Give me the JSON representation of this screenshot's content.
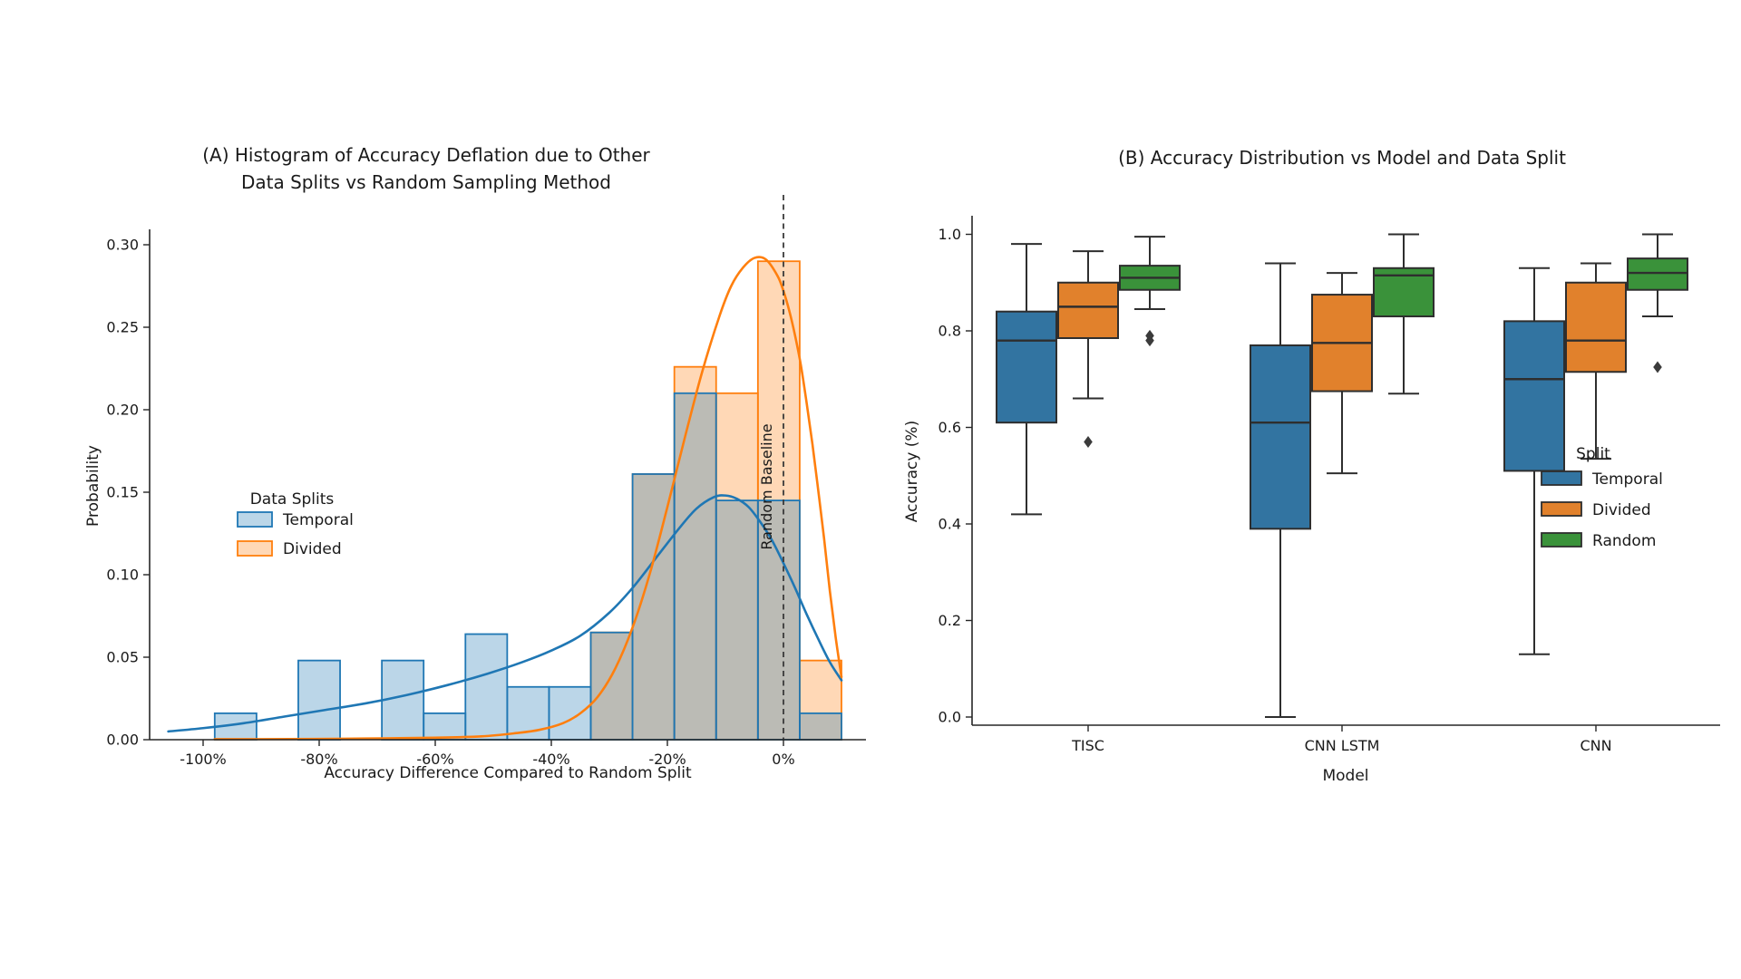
{
  "figure": {
    "chartA": {
      "title_line1": "(A) Histogram of Accuracy Deflation due to Other",
      "title_line2": "Data Splits vs Random Sampling Method",
      "xlabel": "Accuracy Difference Compared to Random Split",
      "ylabel": "Probability",
      "legend_title": "Data Splits",
      "legend_items": [
        "Temporal",
        "Divided"
      ],
      "baseline_label": "Random Baseline"
    },
    "chartB": {
      "title": "(B) Accuracy Distribution vs Model and Data Split",
      "xlabel": "Model",
      "ylabel": "Accuracy (%)",
      "legend_title": "Split",
      "legend_items": [
        "Temporal",
        "Divided",
        "Random"
      ]
    }
  },
  "chart_data": [
    {
      "id": "A",
      "type": "histogram+kde",
      "title": "(A) Histogram of Accuracy Deflation due to Other\nData Splits vs Random Sampling Method",
      "xlabel": "Accuracy Difference Compared to Random Split",
      "ylabel": "Probability",
      "x_unit": "percent",
      "xlim": [
        -109,
        14.3
      ],
      "ylim": [
        0,
        0.309
      ],
      "x_ticks": [
        {
          "value": -100,
          "label": "-100%"
        },
        {
          "value": -80,
          "label": "-80%"
        },
        {
          "value": -60,
          "label": "-60%"
        },
        {
          "value": -40,
          "label": "-40%"
        },
        {
          "value": -20,
          "label": "-20%"
        },
        {
          "value": 0,
          "label": "0%"
        }
      ],
      "y_ticks": [
        {
          "value": 0.0,
          "label": "0.00"
        },
        {
          "value": 0.05,
          "label": "0.05"
        },
        {
          "value": 0.1,
          "label": "0.10"
        },
        {
          "value": 0.15,
          "label": "0.15"
        },
        {
          "value": 0.2,
          "label": "0.20"
        },
        {
          "value": 0.25,
          "label": "0.25"
        },
        {
          "value": 0.3,
          "label": "0.30"
        }
      ],
      "bin_edges": [
        -98.0,
        -90.8,
        -83.6,
        -76.4,
        -69.2,
        -62.0,
        -54.8,
        -47.6,
        -40.4,
        -33.2,
        -26.0,
        -18.8,
        -11.6,
        -4.4,
        2.8,
        10.0
      ],
      "series": [
        {
          "name": "Temporal",
          "color": "#1f77b4",
          "fill": "rgba(31,119,180,0.3)",
          "heights": [
            0.016,
            0,
            0.048,
            0,
            0.048,
            0.016,
            0.064,
            0.032,
            0.032,
            0.065,
            0.161,
            0.21,
            0.145,
            0.145,
            0.016
          ]
        },
        {
          "name": "Divided",
          "color": "#ff7f0e",
          "fill": "rgba(255,127,14,0.3)",
          "heights": [
            0,
            0,
            0,
            0,
            0,
            0,
            0,
            0,
            0,
            0.065,
            0.161,
            0.226,
            0.21,
            0.29,
            0.048
          ]
        }
      ],
      "kde": [
        {
          "name": "Temporal",
          "color": "#1f77b4",
          "points": [
            [
              -106,
              0.005
            ],
            [
              -100,
              0.007
            ],
            [
              -93,
              0.01
            ],
            [
              -86,
              0.014
            ],
            [
              -79,
              0.018
            ],
            [
              -72,
              0.022
            ],
            [
              -65,
              0.027
            ],
            [
              -58,
              0.033
            ],
            [
              -51,
              0.04
            ],
            [
              -45,
              0.047
            ],
            [
              -40,
              0.054
            ],
            [
              -35,
              0.063
            ],
            [
              -30,
              0.077
            ],
            [
              -26,
              0.092
            ],
            [
              -22,
              0.11
            ],
            [
              -18,
              0.128
            ],
            [
              -15,
              0.14
            ],
            [
              -12,
              0.147
            ],
            [
              -10,
              0.148
            ],
            [
              -8,
              0.146
            ],
            [
              -6,
              0.141
            ],
            [
              -4,
              0.132
            ],
            [
              -2,
              0.121
            ],
            [
              0,
              0.107
            ],
            [
              2,
              0.092
            ],
            [
              4,
              0.076
            ],
            [
              6,
              0.061
            ],
            [
              8,
              0.047
            ],
            [
              10,
              0.036
            ]
          ]
        },
        {
          "name": "Divided",
          "color": "#ff7f0e",
          "points": [
            [
              -98,
              0.0003
            ],
            [
              -85,
              0.0004
            ],
            [
              -72,
              0.0007
            ],
            [
              -60,
              0.0012
            ],
            [
              -52,
              0.002
            ],
            [
              -46,
              0.004
            ],
            [
              -42,
              0.006
            ],
            [
              -38,
              0.01
            ],
            [
              -35,
              0.016
            ],
            [
              -32,
              0.026
            ],
            [
              -29,
              0.043
            ],
            [
              -26,
              0.068
            ],
            [
              -23,
              0.101
            ],
            [
              -20,
              0.141
            ],
            [
              -17,
              0.183
            ],
            [
              -14,
              0.223
            ],
            [
              -11,
              0.257
            ],
            [
              -9,
              0.275
            ],
            [
              -7,
              0.286
            ],
            [
              -5,
              0.292
            ],
            [
              -3,
              0.291
            ],
            [
              -1,
              0.281
            ],
            [
              0,
              0.272
            ],
            [
              1,
              0.26
            ],
            [
              2,
              0.245
            ],
            [
              3,
              0.227
            ],
            [
              4,
              0.204
            ],
            [
              5,
              0.179
            ],
            [
              6,
              0.151
            ],
            [
              7,
              0.122
            ],
            [
              8,
              0.09
            ],
            [
              9,
              0.062
            ],
            [
              10,
              0.038
            ]
          ]
        }
      ],
      "baseline": {
        "x": 0,
        "label": "Random Baseline"
      },
      "legend_position": "center-left"
    },
    {
      "id": "B",
      "type": "grouped_boxplot",
      "title": "(B) Accuracy Distribution vs Model and Data Split",
      "xlabel": "Model",
      "ylabel": "Accuracy (%)",
      "categories": [
        "TISC",
        "CNN LSTM",
        "CNN"
      ],
      "ylim": [
        0,
        1.0
      ],
      "y_ticks": [
        {
          "value": 0.0,
          "label": "0.0"
        },
        {
          "value": 0.2,
          "label": "0.2"
        },
        {
          "value": 0.4,
          "label": "0.4"
        },
        {
          "value": 0.6,
          "label": "0.6"
        },
        {
          "value": 0.8,
          "label": "0.8"
        },
        {
          "value": 1.0,
          "label": "1.0"
        }
      ],
      "legend_title": "Split",
      "legend_position": "center-right",
      "series": [
        {
          "name": "Temporal",
          "color": "#3274a1",
          "boxes": [
            {
              "category": "TISC",
              "whisker_low": 0.42,
              "q1": 0.61,
              "median": 0.78,
              "q3": 0.84,
              "whisker_high": 0.98,
              "outliers": []
            },
            {
              "category": "CNN LSTM",
              "whisker_low": 0.0,
              "q1": 0.39,
              "median": 0.61,
              "q3": 0.77,
              "whisker_high": 0.94,
              "outliers": []
            },
            {
              "category": "CNN",
              "whisker_low": 0.13,
              "q1": 0.51,
              "median": 0.7,
              "q3": 0.82,
              "whisker_high": 0.93,
              "outliers": []
            }
          ]
        },
        {
          "name": "Divided",
          "color": "#e1812c",
          "boxes": [
            {
              "category": "TISC",
              "whisker_low": 0.66,
              "q1": 0.785,
              "median": 0.85,
              "q3": 0.9,
              "whisker_high": 0.965,
              "outliers": [
                0.57
              ]
            },
            {
              "category": "CNN LSTM",
              "whisker_low": 0.505,
              "q1": 0.675,
              "median": 0.775,
              "q3": 0.875,
              "whisker_high": 0.92,
              "outliers": []
            },
            {
              "category": "CNN",
              "whisker_low": 0.535,
              "q1": 0.715,
              "median": 0.78,
              "q3": 0.9,
              "whisker_high": 0.94,
              "outliers": []
            }
          ]
        },
        {
          "name": "Random",
          "color": "#3a923a",
          "boxes": [
            {
              "category": "TISC",
              "whisker_low": 0.845,
              "q1": 0.885,
              "median": 0.91,
              "q3": 0.935,
              "whisker_high": 0.995,
              "outliers": [
                0.79,
                0.78
              ]
            },
            {
              "category": "CNN LSTM",
              "whisker_low": 0.67,
              "q1": 0.83,
              "median": 0.915,
              "q3": 0.93,
              "whisker_high": 1.0,
              "outliers": []
            },
            {
              "category": "CNN",
              "whisker_low": 0.83,
              "q1": 0.885,
              "median": 0.92,
              "q3": 0.95,
              "whisker_high": 1.0,
              "outliers": [
                0.725
              ]
            }
          ]
        }
      ]
    }
  ]
}
